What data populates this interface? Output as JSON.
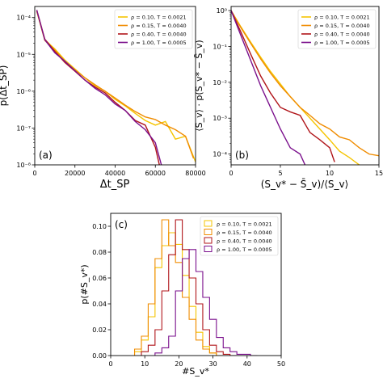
{
  "colors": {
    "rho010": "#f5c400",
    "rho015": "#f08c00",
    "rho040": "#b0151a",
    "rho100": "#7a0f8c"
  },
  "legend": [
    {
      "key": "rho010",
      "label": "ρ = 0.10, T = 0.0021"
    },
    {
      "key": "rho015",
      "label": "ρ = 0.15, T = 0.0040"
    },
    {
      "key": "rho040",
      "label": "ρ = 0.40, T = 0.0040"
    },
    {
      "key": "rho100",
      "label": "ρ = 1.00, T = 0.0005"
    }
  ],
  "chart_data": [
    {
      "panel": "(a)",
      "type": "line",
      "xlabel": "Δt_SP",
      "ylabel": "p(Δt_SP)",
      "xlim": [
        0,
        80000
      ],
      "ylim": [
        1e-08,
        0.0002
      ],
      "yscale": "log",
      "xticks": [
        "0",
        "20000",
        "40000",
        "60000",
        "80000"
      ],
      "yticks": [
        "10⁻⁸",
        "10⁻⁷",
        "10⁻⁶",
        "10⁻⁵",
        "10⁻⁴"
      ],
      "legend_position": "top-right",
      "series": [
        {
          "key": "rho010",
          "name": "ρ = 0.10, T = 0.0021",
          "x": [
            1000,
            5000,
            10000,
            15000,
            20000,
            25000,
            30000,
            35000,
            40000,
            45000,
            50000,
            55000,
            60000,
            65000,
            70000,
            75000,
            80000
          ],
          "y": [
            0.00015,
            2.5e-05,
            1.4e-05,
            7e-06,
            4e-06,
            2.3e-06,
            1.4e-06,
            1e-06,
            6e-07,
            4e-07,
            2.5e-07,
            1.6e-07,
            1.2e-07,
            1.5e-07,
            5e-08,
            6e-08,
            1.2e-08
          ]
        },
        {
          "key": "rho015",
          "name": "ρ = 0.15, T = 0.0040",
          "x": [
            1000,
            5000,
            10000,
            15000,
            20000,
            25000,
            30000,
            35000,
            40000,
            45000,
            50000,
            55000,
            60000,
            65000,
            70000,
            75000,
            79000
          ],
          "y": [
            0.00015,
            2.4e-05,
            1.3e-05,
            6.5e-06,
            3.8e-06,
            2.3e-06,
            1.5e-06,
            1e-06,
            6.5e-07,
            4.2e-07,
            2.8e-07,
            2e-07,
            1.7e-07,
            1.2e-07,
            9e-08,
            6e-08,
            1.5e-08
          ]
        },
        {
          "key": "rho040",
          "name": "ρ = 0.40, T = 0.0040",
          "x": [
            1000,
            5000,
            10000,
            15000,
            20000,
            25000,
            30000,
            35000,
            40000,
            45000,
            50000,
            55000,
            60000,
            62000
          ],
          "y": [
            0.00016,
            2.6e-05,
            1.2e-05,
            6e-06,
            3.5e-06,
            2e-06,
            1.3e-06,
            9e-07,
            5e-07,
            3e-07,
            1.6e-07,
            1.2e-07,
            3e-08,
            1e-08
          ]
        },
        {
          "key": "rho100",
          "name": "ρ = 1.00, T = 0.0005",
          "x": [
            1000,
            5000,
            10000,
            15000,
            20000,
            25000,
            30000,
            35000,
            40000,
            45000,
            50000,
            55000,
            60000,
            63000
          ],
          "y": [
            0.00016,
            2.5e-05,
            1.1e-05,
            6.5e-06,
            3.6e-06,
            2e-06,
            1.2e-06,
            8e-07,
            4.5e-07,
            3e-07,
            1.5e-07,
            9e-08,
            4e-08,
            1e-08
          ]
        }
      ]
    },
    {
      "panel": "(b)",
      "type": "line",
      "xlabel": "(S_v* − S̄_v)/⟨S_v⟩",
      "ylabel": "⟨S_v⟩ · p(S_v* − S̄_v)",
      "xlim": [
        0,
        15
      ],
      "ylim": [
        5e-05,
        1.3
      ],
      "yscale": "log",
      "xticks": [
        "0",
        "5",
        "10",
        "15"
      ],
      "yticks": [
        "10⁻⁴",
        "10⁻³",
        "10⁻²",
        "10⁻¹",
        "10⁰"
      ],
      "legend_position": "top-right",
      "series": [
        {
          "key": "rho010",
          "name": "ρ = 0.10, T = 0.0021",
          "x": [
            0,
            1,
            2,
            3,
            4,
            5,
            6,
            7,
            8,
            9,
            10,
            11,
            12,
            13
          ],
          "y": [
            1.0,
            0.35,
            0.13,
            0.05,
            0.02,
            0.009,
            0.004,
            0.002,
            0.001,
            0.0005,
            0.00025,
            0.00012,
            8e-05,
            5e-05
          ]
        },
        {
          "key": "rho015",
          "name": "ρ = 0.15, T = 0.0040",
          "x": [
            0,
            1,
            2,
            3,
            4,
            5,
            6,
            7,
            8,
            9,
            10,
            11,
            12,
            13,
            14,
            15
          ],
          "y": [
            1.0,
            0.33,
            0.12,
            0.045,
            0.018,
            0.008,
            0.004,
            0.002,
            0.0012,
            0.0007,
            0.0005,
            0.0003,
            0.00025,
            0.00015,
            0.0001,
            9e-05
          ]
        },
        {
          "key": "rho040",
          "name": "ρ = 0.40, T = 0.0040",
          "x": [
            0,
            1,
            2,
            3,
            4,
            5,
            6,
            7,
            8,
            9,
            10,
            10.5
          ],
          "y": [
            1.0,
            0.25,
            0.06,
            0.015,
            0.005,
            0.002,
            0.0015,
            0.0012,
            0.0004,
            0.00025,
            0.00015,
            6e-05
          ]
        },
        {
          "key": "rho100",
          "name": "ρ = 1.00, T = 0.0005",
          "x": [
            0,
            1,
            2,
            3,
            4,
            5,
            6,
            7,
            7.5
          ],
          "y": [
            1.0,
            0.2,
            0.04,
            0.008,
            0.002,
            0.0005,
            0.00015,
            0.0001,
            5e-05
          ]
        }
      ]
    },
    {
      "panel": "(c)",
      "type": "step",
      "xlabel": "#S_v*",
      "ylabel": "p(#S_v*)",
      "xlim": [
        0,
        50
      ],
      "ylim": [
        0,
        0.11
      ],
      "xticks": [
        "0",
        "10",
        "20",
        "30",
        "40",
        "50"
      ],
      "yticks": [
        "0.00",
        "0.02",
        "0.04",
        "0.06",
        "0.08",
        "0.10"
      ],
      "legend_position": "top-right",
      "series": [
        {
          "key": "rho010",
          "name": "ρ = 0.10, T = 0.0021",
          "x": [
            8,
            10,
            12,
            14,
            16,
            18,
            20,
            22,
            24,
            26,
            28,
            30,
            32
          ],
          "y": [
            0.003,
            0.012,
            0.03,
            0.068,
            0.085,
            0.095,
            0.086,
            0.062,
            0.038,
            0.018,
            0.007,
            0.002,
            0.0
          ]
        },
        {
          "key": "rho015",
          "name": "ρ = 0.15, T = 0.0040",
          "x": [
            8,
            10,
            12,
            14,
            16,
            18,
            20,
            22,
            24,
            26,
            28,
            30,
            32
          ],
          "y": [
            0.005,
            0.015,
            0.04,
            0.075,
            0.105,
            0.085,
            0.072,
            0.045,
            0.028,
            0.012,
            0.005,
            0.002,
            0.0
          ]
        },
        {
          "key": "rho040",
          "name": "ρ = 0.40, T = 0.0040",
          "x": [
            10,
            12,
            14,
            16,
            18,
            20,
            22,
            24,
            26,
            28,
            30,
            32,
            34,
            36
          ],
          "y": [
            0.003,
            0.008,
            0.02,
            0.05,
            0.078,
            0.105,
            0.082,
            0.06,
            0.04,
            0.02,
            0.008,
            0.003,
            0.001,
            0.0
          ]
        },
        {
          "key": "rho100",
          "name": "ρ = 1.00, T = 0.0005",
          "x": [
            14,
            16,
            18,
            20,
            22,
            24,
            26,
            28,
            30,
            32,
            34,
            36,
            38,
            40,
            42
          ],
          "y": [
            0.002,
            0.006,
            0.015,
            0.05,
            0.075,
            0.082,
            0.065,
            0.045,
            0.028,
            0.014,
            0.006,
            0.003,
            0.001,
            0.001,
            0.0
          ]
        }
      ]
    }
  ]
}
